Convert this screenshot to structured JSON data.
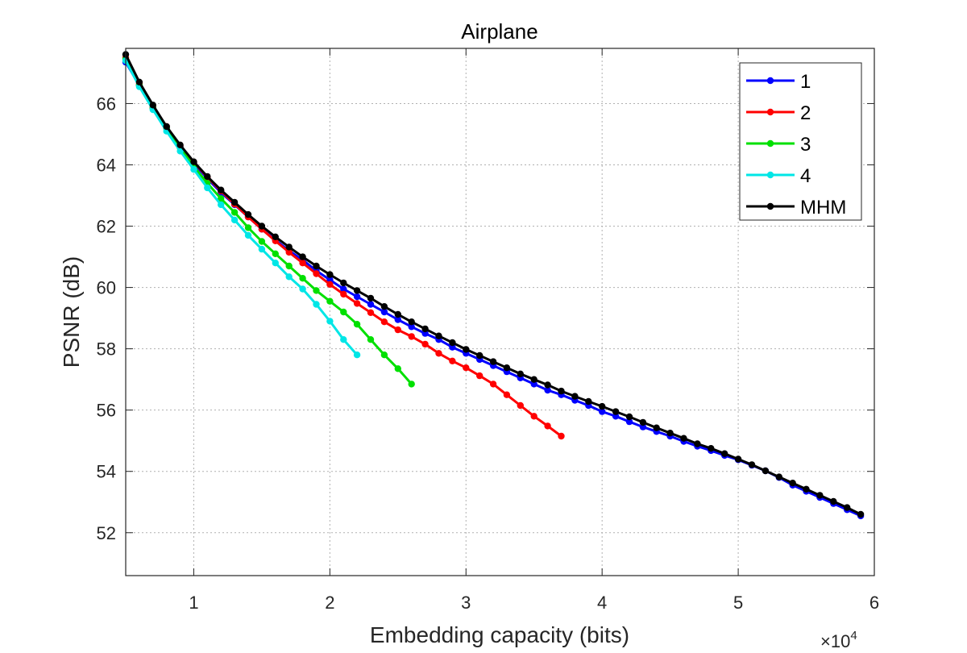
{
  "chart_data": {
    "type": "line",
    "title": "Airplane",
    "xlabel": "Embedding capacity (bits)",
    "ylabel": "PSNR (dB)",
    "x_multiplier_label": "×10",
    "x_multiplier_exponent": "4",
    "xlim": [
      0.5,
      6
    ],
    "ylim": [
      50.6,
      67.8
    ],
    "xticks": [
      1,
      2,
      3,
      4,
      5,
      6
    ],
    "xtick_labels": [
      "1",
      "2",
      "3",
      "4",
      "5",
      "6"
    ],
    "yticks": [
      52,
      54,
      56,
      58,
      60,
      62,
      64,
      66
    ],
    "ytick_labels": [
      "52",
      "54",
      "56",
      "58",
      "60",
      "62",
      "64",
      "66"
    ],
    "grid": true,
    "legend_position": "top-right",
    "series": [
      {
        "name": "1",
        "color": "#0000ff",
        "x": [
          0.5,
          0.6,
          0.7,
          0.8,
          0.9,
          1.0,
          1.1,
          1.2,
          1.3,
          1.4,
          1.5,
          1.6,
          1.7,
          1.8,
          1.9,
          2.0,
          2.1,
          2.2,
          2.3,
          2.4,
          2.5,
          2.6,
          2.7,
          2.8,
          2.9,
          3.0,
          3.1,
          3.2,
          3.3,
          3.4,
          3.5,
          3.6,
          3.7,
          3.8,
          3.9,
          4.0,
          4.1,
          4.2,
          4.3,
          4.4,
          4.5,
          4.6,
          4.7,
          4.8,
          4.9,
          5.0,
          5.1,
          5.2,
          5.3,
          5.4,
          5.5,
          5.6,
          5.7,
          5.8,
          5.9
        ],
        "y": [
          67.35,
          66.6,
          65.85,
          65.2,
          64.6,
          64.05,
          63.55,
          63.1,
          62.7,
          62.3,
          61.9,
          61.55,
          61.2,
          60.9,
          60.55,
          60.25,
          59.95,
          59.7,
          59.45,
          59.2,
          58.95,
          58.72,
          58.5,
          58.3,
          58.05,
          57.85,
          57.65,
          57.45,
          57.25,
          57.05,
          56.85,
          56.65,
          56.5,
          56.32,
          56.15,
          55.95,
          55.8,
          55.62,
          55.45,
          55.3,
          55.15,
          54.98,
          54.82,
          54.68,
          54.52,
          54.38,
          54.2,
          54.02,
          53.8,
          53.55,
          53.35,
          53.15,
          52.95,
          52.75,
          52.55
        ]
      },
      {
        "name": "2",
        "color": "#ff0000",
        "x": [
          0.5,
          0.6,
          0.7,
          0.8,
          0.9,
          1.0,
          1.1,
          1.2,
          1.3,
          1.4,
          1.5,
          1.6,
          1.7,
          1.8,
          1.9,
          2.0,
          2.1,
          2.2,
          2.3,
          2.4,
          2.5,
          2.6,
          2.7,
          2.8,
          2.9,
          3.0,
          3.1,
          3.2,
          3.3,
          3.4,
          3.5,
          3.6,
          3.7
        ],
        "y": [
          67.5,
          66.65,
          65.9,
          65.25,
          64.62,
          64.08,
          63.6,
          63.15,
          62.72,
          62.3,
          61.9,
          61.52,
          61.15,
          60.8,
          60.45,
          60.1,
          59.78,
          59.48,
          59.18,
          58.88,
          58.62,
          58.4,
          58.15,
          57.85,
          57.6,
          57.38,
          57.12,
          56.85,
          56.5,
          56.15,
          55.8,
          55.48,
          55.15
        ]
      },
      {
        "name": "3",
        "color": "#00e000",
        "x": [
          0.5,
          0.6,
          0.7,
          0.8,
          0.9,
          1.0,
          1.1,
          1.2,
          1.3,
          1.4,
          1.5,
          1.6,
          1.7,
          1.8,
          1.9,
          2.0,
          2.1,
          2.2,
          2.3,
          2.4,
          2.5,
          2.6
        ],
        "y": [
          67.45,
          66.6,
          65.85,
          65.2,
          64.55,
          63.95,
          63.4,
          62.9,
          62.45,
          61.95,
          61.5,
          61.1,
          60.7,
          60.3,
          59.9,
          59.55,
          59.2,
          58.8,
          58.3,
          57.8,
          57.35,
          56.85
        ]
      },
      {
        "name": "4",
        "color": "#00e6e6",
        "x": [
          0.5,
          0.6,
          0.7,
          0.8,
          0.9,
          1.0,
          1.1,
          1.2,
          1.3,
          1.4,
          1.5,
          1.6,
          1.7,
          1.8,
          1.9,
          2.0,
          2.1,
          2.2
        ],
        "y": [
          67.4,
          66.55,
          65.8,
          65.1,
          64.45,
          63.85,
          63.25,
          62.7,
          62.2,
          61.7,
          61.25,
          60.8,
          60.35,
          59.95,
          59.45,
          58.9,
          58.3,
          57.8
        ]
      },
      {
        "name": "MHM",
        "color": "#000000",
        "x": [
          0.5,
          0.6,
          0.7,
          0.8,
          0.9,
          1.0,
          1.1,
          1.2,
          1.3,
          1.4,
          1.5,
          1.6,
          1.7,
          1.8,
          1.9,
          2.0,
          2.1,
          2.2,
          2.3,
          2.4,
          2.5,
          2.6,
          2.7,
          2.8,
          2.9,
          3.0,
          3.1,
          3.2,
          3.3,
          3.4,
          3.5,
          3.6,
          3.7,
          3.8,
          3.9,
          4.0,
          4.1,
          4.2,
          4.3,
          4.4,
          4.5,
          4.6,
          4.7,
          4.8,
          4.9,
          5.0,
          5.1,
          5.2,
          5.3,
          5.4,
          5.5,
          5.6,
          5.7,
          5.8,
          5.9
        ],
        "y": [
          67.6,
          66.7,
          65.95,
          65.25,
          64.65,
          64.1,
          63.62,
          63.18,
          62.78,
          62.38,
          62.0,
          61.65,
          61.32,
          61.0,
          60.7,
          60.42,
          60.15,
          59.9,
          59.65,
          59.38,
          59.12,
          58.88,
          58.65,
          58.42,
          58.2,
          57.98,
          57.78,
          57.58,
          57.38,
          57.18,
          57.0,
          56.82,
          56.62,
          56.45,
          56.28,
          56.12,
          55.95,
          55.78,
          55.6,
          55.42,
          55.25,
          55.08,
          54.9,
          54.75,
          54.58,
          54.4,
          54.22,
          54.02,
          53.82,
          53.62,
          53.42,
          53.22,
          53.02,
          52.82,
          52.6
        ]
      }
    ]
  }
}
